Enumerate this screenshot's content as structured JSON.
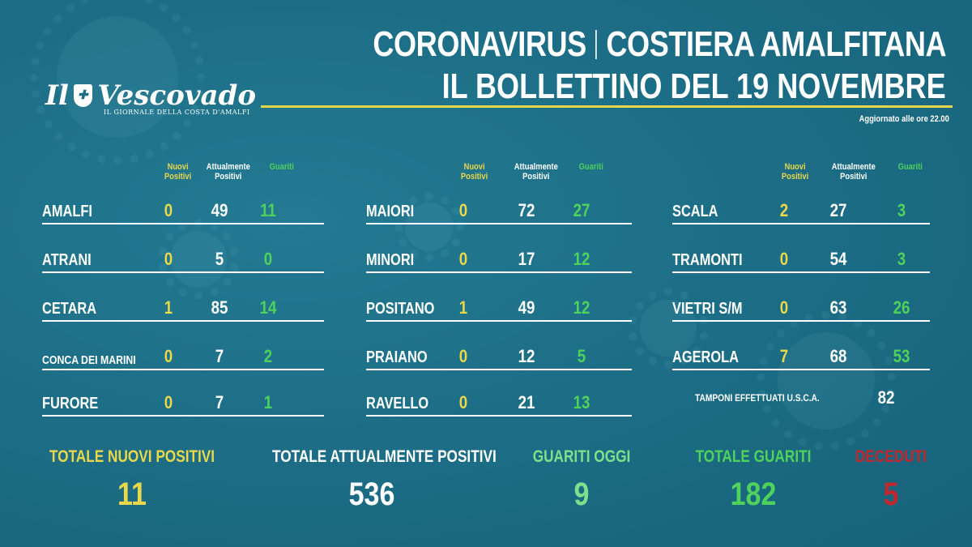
{
  "header": {
    "title_left": "CORONAVIRUS",
    "title_right": "COSTIERA AMALFITANA",
    "subtitle": "IL BOLLETTINO DEL 19 NOVEMBRE",
    "updated": "Aggiornato alle ore 22.00"
  },
  "logo": {
    "text_left": "Il",
    "text_right": "Vescovado",
    "tagline": "IL GIORNALE DELLA COSTA D'AMALFI"
  },
  "column_headers": {
    "new": "Nuovi\nPositivi",
    "current": "Attualmente\nPositivi",
    "healed": "Guariti"
  },
  "columns": [
    {
      "rows": [
        {
          "name": "AMALFI",
          "new": "0",
          "current": "49",
          "healed": "11",
          "small": false
        },
        {
          "name": "ATRANI",
          "new": "0",
          "current": "5",
          "healed": "0",
          "small": false
        },
        {
          "name": "CETARA",
          "new": "1",
          "current": "85",
          "healed": "14",
          "small": false
        },
        {
          "name": "CONCA DEI MARINI",
          "new": "0",
          "current": "7",
          "healed": "2",
          "small": true
        },
        {
          "name": "FURORE",
          "new": "0",
          "current": "7",
          "healed": "1",
          "small": false
        }
      ]
    },
    {
      "rows": [
        {
          "name": "MAIORI",
          "new": "0",
          "current": "72",
          "healed": "27",
          "small": false
        },
        {
          "name": "MINORI",
          "new": "0",
          "current": "17",
          "healed": "12",
          "small": false
        },
        {
          "name": "POSITANO",
          "new": "1",
          "current": "49",
          "healed": "12",
          "small": false
        },
        {
          "name": "PRAIANO",
          "new": "0",
          "current": "12",
          "healed": "5",
          "small": false
        },
        {
          "name": "RAVELLO",
          "new": "0",
          "current": "21",
          "healed": "13",
          "small": false
        }
      ]
    },
    {
      "rows": [
        {
          "name": "SCALA",
          "new": "2",
          "current": "27",
          "healed": "3",
          "small": false
        },
        {
          "name": "TRAMONTI",
          "new": "0",
          "current": "54",
          "healed": "3",
          "small": false
        },
        {
          "name": "VIETRI S/M",
          "new": "0",
          "current": "63",
          "healed": "26",
          "small": false
        },
        {
          "name": "AGEROLA",
          "new": "7",
          "current": "68",
          "healed": "53",
          "small": false
        }
      ]
    }
  ],
  "tamponi": {
    "label": "TAMPONI  EFFETTUATI U.S.C.A.",
    "value": "82"
  },
  "totals": [
    {
      "label": "TOTALE NUOVI POSITIVI",
      "value": "11",
      "color": "#e8d84a"
    },
    {
      "label": "TOTALE ATTUALMENTE POSITIVI",
      "value": "536",
      "color": "#ffffff"
    },
    {
      "label": "GUARITI OGGI",
      "value": "9",
      "color": "#7fe08c"
    },
    {
      "label": "TOTALE GUARITI",
      "value": "182",
      "color": "#4fd25c"
    },
    {
      "label": "DECEDUTI",
      "value": "5",
      "color": "#c4262e"
    }
  ],
  "colors": {
    "background": "#1b6c84",
    "accent_line": "#e3d64a",
    "new": "#e8d84a",
    "healed": "#4fd25c",
    "deaths": "#c4262e"
  }
}
